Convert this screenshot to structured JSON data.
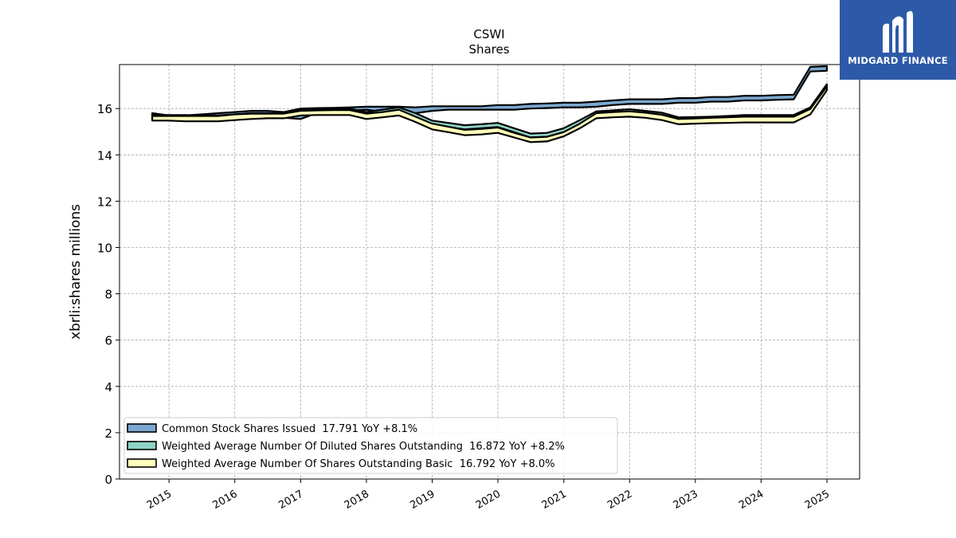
{
  "chart_data": {
    "type": "area",
    "title": "CSWI",
    "subtitle": "Shares",
    "ylabel": "xbrli:shares millions",
    "xlabel": "",
    "ylim": [
      0,
      17.9
    ],
    "yticks": [
      0,
      2,
      4,
      6,
      8,
      10,
      12,
      14,
      16
    ],
    "xticks": [
      "2015",
      "2016",
      "2017",
      "2018",
      "2019",
      "2020",
      "2021",
      "2022",
      "2023",
      "2024",
      "2025"
    ],
    "grid": true,
    "legend_position": "lower-left",
    "series": [
      {
        "name": "Common Stock Shares Issued  17.791 YoY +8.1%",
        "color": "#7ba7d0",
        "upper": [
          [
            "2014-09-30",
            15.8
          ],
          [
            "2014-12-31",
            15.7
          ],
          [
            "2015-03-31",
            15.7
          ],
          [
            "2015-06-30",
            15.75
          ],
          [
            "2015-09-30",
            15.8
          ],
          [
            "2015-12-31",
            15.85
          ],
          [
            "2016-03-31",
            15.9
          ],
          [
            "2016-06-30",
            15.9
          ],
          [
            "2016-09-30",
            15.85
          ],
          [
            "2016-12-31",
            16.0
          ],
          [
            "2017-03-31",
            16.02
          ],
          [
            "2017-06-30",
            16.03
          ],
          [
            "2017-09-30",
            16.05
          ],
          [
            "2017-12-31",
            16.08
          ],
          [
            "2018-03-31",
            16.08
          ],
          [
            "2018-06-30",
            16.08
          ],
          [
            "2018-09-30",
            16.05
          ],
          [
            "2018-12-31",
            16.1
          ],
          [
            "2019-03-31",
            16.1
          ],
          [
            "2019-06-30",
            16.1
          ],
          [
            "2019-09-30",
            16.1
          ],
          [
            "2019-12-31",
            16.15
          ],
          [
            "2020-03-31",
            16.15
          ],
          [
            "2020-06-30",
            16.2
          ],
          [
            "2020-09-30",
            16.22
          ],
          [
            "2020-12-31",
            16.25
          ],
          [
            "2021-03-31",
            16.25
          ],
          [
            "2021-06-30",
            16.3
          ],
          [
            "2021-09-30",
            16.35
          ],
          [
            "2021-12-31",
            16.4
          ],
          [
            "2022-03-31",
            16.4
          ],
          [
            "2022-06-30",
            16.4
          ],
          [
            "2022-09-30",
            16.45
          ],
          [
            "2022-12-31",
            16.45
          ],
          [
            "2023-03-31",
            16.5
          ],
          [
            "2023-06-30",
            16.5
          ],
          [
            "2023-09-30",
            16.55
          ],
          [
            "2023-12-31",
            16.55
          ],
          [
            "2024-03-31",
            16.58
          ],
          [
            "2024-06-30",
            16.6
          ],
          [
            "2024-09-30",
            17.8
          ],
          [
            "2024-12-31",
            17.83
          ]
        ],
        "lower": [
          [
            "2014-09-30",
            15.7
          ],
          [
            "2014-12-31",
            15.55
          ],
          [
            "2015-03-31",
            15.5
          ],
          [
            "2015-06-30",
            15.5
          ],
          [
            "2015-09-30",
            15.5
          ],
          [
            "2015-12-31",
            15.55
          ],
          [
            "2016-03-31",
            15.6
          ],
          [
            "2016-06-30",
            15.6
          ],
          [
            "2016-09-30",
            15.6
          ],
          [
            "2016-12-31",
            15.55
          ],
          [
            "2017-03-31",
            15.8
          ],
          [
            "2017-06-30",
            15.85
          ],
          [
            "2017-09-30",
            15.9
          ],
          [
            "2017-12-31",
            15.95
          ],
          [
            "2018-03-31",
            15.85
          ],
          [
            "2018-06-30",
            15.95
          ],
          [
            "2018-09-30",
            15.8
          ],
          [
            "2018-12-31",
            15.9
          ],
          [
            "2019-03-31",
            15.95
          ],
          [
            "2019-06-30",
            15.95
          ],
          [
            "2019-09-30",
            15.95
          ],
          [
            "2019-12-31",
            15.95
          ],
          [
            "2020-03-31",
            15.95
          ],
          [
            "2020-06-30",
            16.0
          ],
          [
            "2020-09-30",
            16.02
          ],
          [
            "2020-12-31",
            16.05
          ],
          [
            "2021-03-31",
            16.05
          ],
          [
            "2021-06-30",
            16.08
          ],
          [
            "2021-09-30",
            16.15
          ],
          [
            "2021-12-31",
            16.2
          ],
          [
            "2022-03-31",
            16.2
          ],
          [
            "2022-06-30",
            16.2
          ],
          [
            "2022-09-30",
            16.25
          ],
          [
            "2022-12-31",
            16.25
          ],
          [
            "2023-03-31",
            16.3
          ],
          [
            "2023-06-30",
            16.3
          ],
          [
            "2023-09-30",
            16.35
          ],
          [
            "2023-12-31",
            16.35
          ],
          [
            "2024-03-31",
            16.38
          ],
          [
            "2024-06-30",
            16.4
          ],
          [
            "2024-09-30",
            17.6
          ],
          [
            "2024-12-31",
            17.63
          ]
        ]
      },
      {
        "name": "Weighted Average Number Of Diluted Shares Outstanding  16.872 YoY +8.2%",
        "color": "#8fd3c5",
        "upper": [
          [
            "2014-09-30",
            15.72
          ],
          [
            "2014-12-31",
            15.72
          ],
          [
            "2015-03-31",
            15.72
          ],
          [
            "2015-06-30",
            15.7
          ],
          [
            "2015-09-30",
            15.7
          ],
          [
            "2015-12-31",
            15.75
          ],
          [
            "2016-03-31",
            15.8
          ],
          [
            "2016-06-30",
            15.8
          ],
          [
            "2016-09-30",
            15.8
          ],
          [
            "2016-12-31",
            15.95
          ],
          [
            "2017-03-31",
            15.97
          ],
          [
            "2017-06-30",
            15.98
          ],
          [
            "2017-09-30",
            16.0
          ],
          [
            "2017-12-31",
            15.85
          ],
          [
            "2018-03-31",
            15.95
          ],
          [
            "2018-06-30",
            16.05
          ],
          [
            "2018-09-30",
            15.8
          ],
          [
            "2018-12-31",
            15.48
          ],
          [
            "2019-03-31",
            15.38
          ],
          [
            "2019-06-30",
            15.28
          ],
          [
            "2019-09-30",
            15.32
          ],
          [
            "2019-12-31",
            15.38
          ],
          [
            "2020-03-31",
            15.15
          ],
          [
            "2020-06-30",
            14.92
          ],
          [
            "2020-09-30",
            14.95
          ],
          [
            "2020-12-31",
            15.15
          ],
          [
            "2021-03-31",
            15.5
          ],
          [
            "2021-06-30",
            15.88
          ],
          [
            "2021-09-30",
            15.92
          ],
          [
            "2021-12-31",
            15.97
          ],
          [
            "2022-03-31",
            15.9
          ],
          [
            "2022-06-30",
            15.82
          ],
          [
            "2022-09-30",
            15.62
          ],
          [
            "2022-12-31",
            15.63
          ],
          [
            "2023-03-31",
            15.65
          ],
          [
            "2023-06-30",
            15.68
          ],
          [
            "2023-09-30",
            15.72
          ],
          [
            "2023-12-31",
            15.72
          ],
          [
            "2024-03-31",
            15.72
          ],
          [
            "2024-06-30",
            15.72
          ],
          [
            "2024-09-30",
            16.05
          ],
          [
            "2024-12-31",
            17.05
          ]
        ],
        "lower": [
          [
            "2014-09-30",
            15.55
          ],
          [
            "2014-12-31",
            15.55
          ],
          [
            "2015-03-31",
            15.55
          ],
          [
            "2015-06-30",
            15.55
          ],
          [
            "2015-09-30",
            15.55
          ],
          [
            "2015-12-31",
            15.65
          ],
          [
            "2016-03-31",
            15.7
          ],
          [
            "2016-06-30",
            15.7
          ],
          [
            "2016-09-30",
            15.7
          ],
          [
            "2016-12-31",
            15.82
          ],
          [
            "2017-03-31",
            15.85
          ],
          [
            "2017-06-30",
            15.85
          ],
          [
            "2017-09-30",
            15.85
          ],
          [
            "2017-12-31",
            15.7
          ],
          [
            "2018-03-31",
            15.8
          ],
          [
            "2018-06-30",
            15.9
          ],
          [
            "2018-09-30",
            15.6
          ],
          [
            "2018-12-31",
            15.3
          ],
          [
            "2019-03-31",
            15.2
          ],
          [
            "2019-06-30",
            15.1
          ],
          [
            "2019-09-30",
            15.15
          ],
          [
            "2019-12-31",
            15.2
          ],
          [
            "2020-03-31",
            14.98
          ],
          [
            "2020-06-30",
            14.75
          ],
          [
            "2020-09-30",
            14.78
          ],
          [
            "2020-12-31",
            14.98
          ],
          [
            "2021-03-31",
            15.32
          ],
          [
            "2021-06-30",
            15.72
          ],
          [
            "2021-09-30",
            15.75
          ],
          [
            "2021-12-31",
            15.8
          ],
          [
            "2022-03-31",
            15.75
          ],
          [
            "2022-06-30",
            15.65
          ],
          [
            "2022-09-30",
            15.45
          ],
          [
            "2022-12-31",
            15.47
          ],
          [
            "2023-03-31",
            15.5
          ],
          [
            "2023-06-30",
            15.52
          ],
          [
            "2023-09-30",
            15.55
          ],
          [
            "2023-12-31",
            15.55
          ],
          [
            "2024-03-31",
            15.55
          ],
          [
            "2024-06-30",
            15.55
          ],
          [
            "2024-09-30",
            15.9
          ],
          [
            "2024-12-31",
            16.87
          ]
        ]
      },
      {
        "name": "Weighted Average Number Of Shares Outstanding Basic  16.792 YoY +8.0%",
        "color": "#ffffbb",
        "upper": [
          [
            "2014-09-30",
            15.68
          ],
          [
            "2014-12-31",
            15.68
          ],
          [
            "2015-03-31",
            15.68
          ],
          [
            "2015-06-30",
            15.68
          ],
          [
            "2015-09-30",
            15.68
          ],
          [
            "2015-12-31",
            15.75
          ],
          [
            "2016-03-31",
            15.78
          ],
          [
            "2016-06-30",
            15.78
          ],
          [
            "2016-09-30",
            15.78
          ],
          [
            "2016-12-31",
            15.9
          ],
          [
            "2017-03-31",
            15.92
          ],
          [
            "2017-06-30",
            15.93
          ],
          [
            "2017-09-30",
            15.93
          ],
          [
            "2017-12-31",
            15.78
          ],
          [
            "2018-03-31",
            15.85
          ],
          [
            "2018-06-30",
            15.95
          ],
          [
            "2018-09-30",
            15.65
          ],
          [
            "2018-12-31",
            15.35
          ],
          [
            "2019-03-31",
            15.22
          ],
          [
            "2019-06-30",
            15.08
          ],
          [
            "2019-09-30",
            15.12
          ],
          [
            "2019-12-31",
            15.18
          ],
          [
            "2020-03-31",
            14.95
          ],
          [
            "2020-06-30",
            14.75
          ],
          [
            "2020-09-30",
            14.78
          ],
          [
            "2020-12-31",
            14.98
          ],
          [
            "2021-03-31",
            15.35
          ],
          [
            "2021-06-30",
            15.8
          ],
          [
            "2021-09-30",
            15.85
          ],
          [
            "2021-12-31",
            15.88
          ],
          [
            "2022-03-31",
            15.82
          ],
          [
            "2022-06-30",
            15.73
          ],
          [
            "2022-09-30",
            15.55
          ],
          [
            "2022-12-31",
            15.57
          ],
          [
            "2023-03-31",
            15.6
          ],
          [
            "2023-06-30",
            15.62
          ],
          [
            "2023-09-30",
            15.65
          ],
          [
            "2023-12-31",
            15.65
          ],
          [
            "2024-03-31",
            15.65
          ],
          [
            "2024-06-30",
            15.65
          ],
          [
            "2024-09-30",
            15.98
          ],
          [
            "2024-12-31",
            16.95
          ]
        ],
        "lower": [
          [
            "2014-09-30",
            15.48
          ],
          [
            "2014-12-31",
            15.48
          ],
          [
            "2015-03-31",
            15.45
          ],
          [
            "2015-06-30",
            15.45
          ],
          [
            "2015-09-30",
            15.45
          ],
          [
            "2015-12-31",
            15.5
          ],
          [
            "2016-03-31",
            15.55
          ],
          [
            "2016-06-30",
            15.58
          ],
          [
            "2016-09-30",
            15.58
          ],
          [
            "2016-12-31",
            15.7
          ],
          [
            "2017-03-31",
            15.72
          ],
          [
            "2017-06-30",
            15.72
          ],
          [
            "2017-09-30",
            15.72
          ],
          [
            "2017-12-31",
            15.55
          ],
          [
            "2018-03-31",
            15.62
          ],
          [
            "2018-06-30",
            15.7
          ],
          [
            "2018-09-30",
            15.42
          ],
          [
            "2018-12-31",
            15.1
          ],
          [
            "2019-03-31",
            14.98
          ],
          [
            "2019-06-30",
            14.85
          ],
          [
            "2019-09-30",
            14.88
          ],
          [
            "2019-12-31",
            14.95
          ],
          [
            "2020-03-31",
            14.75
          ],
          [
            "2020-06-30",
            14.55
          ],
          [
            "2020-09-30",
            14.58
          ],
          [
            "2020-12-31",
            14.8
          ],
          [
            "2021-03-31",
            15.15
          ],
          [
            "2021-06-30",
            15.58
          ],
          [
            "2021-09-30",
            15.62
          ],
          [
            "2021-12-31",
            15.65
          ],
          [
            "2022-03-31",
            15.6
          ],
          [
            "2022-06-30",
            15.5
          ],
          [
            "2022-09-30",
            15.32
          ],
          [
            "2022-12-31",
            15.35
          ],
          [
            "2023-03-31",
            15.37
          ],
          [
            "2023-06-30",
            15.38
          ],
          [
            "2023-09-30",
            15.4
          ],
          [
            "2023-12-31",
            15.4
          ],
          [
            "2024-03-31",
            15.4
          ],
          [
            "2024-06-30",
            15.4
          ],
          [
            "2024-09-30",
            15.75
          ],
          [
            "2024-12-31",
            16.79
          ]
        ]
      }
    ]
  },
  "logo": {
    "text": "MIDGARD FINANCE",
    "color": "#2d5aa8"
  }
}
